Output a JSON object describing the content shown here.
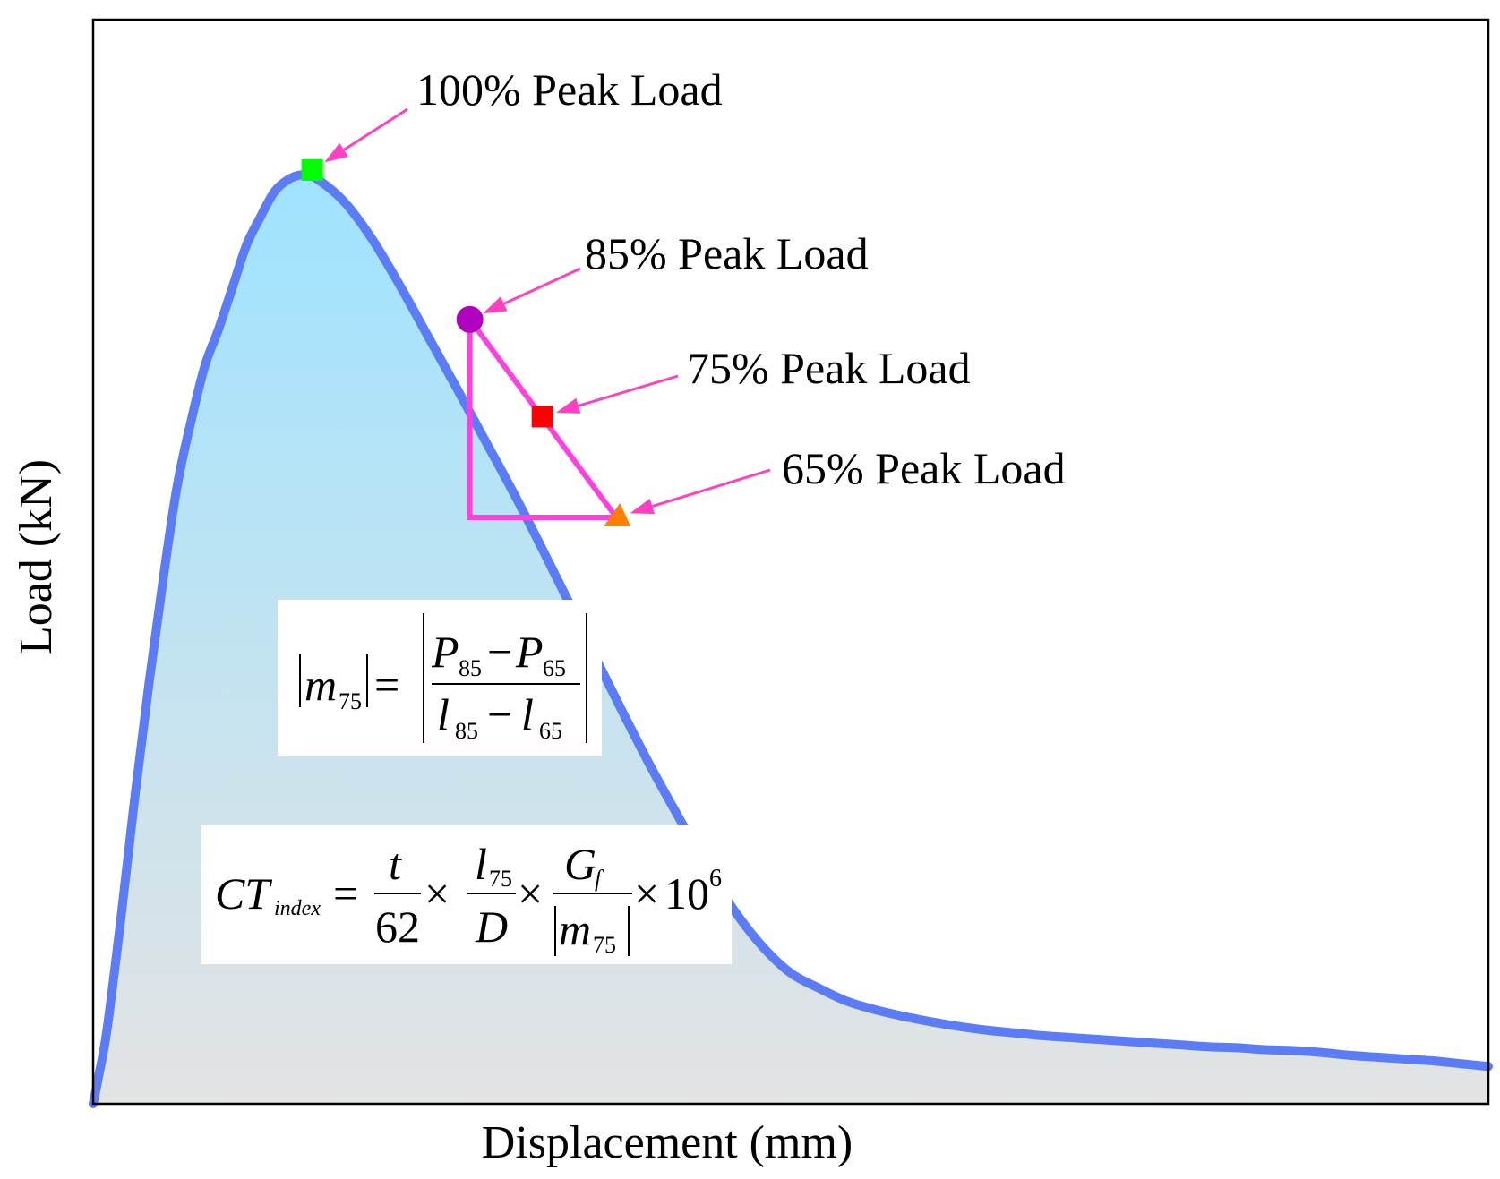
{
  "chart_data": {
    "type": "area",
    "xlabel": "Displacement (mm)",
    "ylabel": "Load (kN)",
    "xlim": [
      0,
      100
    ],
    "ylim": [
      0,
      100
    ],
    "series": [
      {
        "x": [
          0,
          0.4,
          1,
          2,
          3,
          4,
          5,
          6,
          7,
          8,
          9,
          10,
          11,
          12,
          13,
          14,
          15,
          16,
          18,
          20,
          22,
          24,
          26,
          28,
          30,
          32,
          34,
          36,
          38,
          40,
          42,
          44,
          46,
          48,
          50,
          52,
          54,
          56,
          58,
          60,
          62,
          64,
          66,
          68,
          70,
          72,
          74,
          76,
          78,
          80,
          82,
          84,
          86,
          88,
          90,
          92,
          94,
          96,
          98,
          100
        ],
        "y": [
          0,
          3,
          8,
          20,
          33,
          45,
          56,
          66,
          73,
          79,
          83,
          87.5,
          92,
          95,
          97.7,
          99,
          99.5,
          99.1,
          96.6,
          92.6,
          87.6,
          82.2,
          76.8,
          71.3,
          65.8,
          60.0,
          54.0,
          47.8,
          41.8,
          36.0,
          30.6,
          25.3,
          20.6,
          16.8,
          14.0,
          12.4,
          11.0,
          10.1,
          9.4,
          8.8,
          8.3,
          7.9,
          7.6,
          7.3,
          7.1,
          6.9,
          6.7,
          6.5,
          6.3,
          6.1,
          6.0,
          5.8,
          5.7,
          5.5,
          5.2,
          5.0,
          4.8,
          4.6,
          4.3,
          4.0
        ]
      }
    ],
    "annotations": [
      {
        "label": "100% Peak Load",
        "x": 15.7,
        "y": 100,
        "marker": "square",
        "color": "#00ff00"
      },
      {
        "label": "85% Peak Load",
        "x": 27.0,
        "y": 84.0,
        "marker": "circle",
        "color": "#b000c0"
      },
      {
        "label": "75% Peak Load",
        "x": 32.2,
        "y": 73.6,
        "marker": "square",
        "color": "#ff0000"
      },
      {
        "label": "65% Peak Load",
        "x": 37.5,
        "y": 62.8,
        "marker": "triangle",
        "color": "#ff8000"
      }
    ],
    "slope_triangle": {
      "x_from": 27.0,
      "x_to": 37.5,
      "y_from": 84.0,
      "y_to": 62.8,
      "color": "#ff40e0"
    },
    "grid": false,
    "line_color": "#5b7cf5",
    "fill_top_color": "#9fe3ff",
    "fill_bottom_color": "#e3e3e3",
    "arrow_color": "#ff40c0"
  },
  "formulas": {
    "m75": {
      "lhs_var": "m",
      "lhs_sub": "75",
      "eq": "=",
      "num_a": "P",
      "num_a_sub": "85",
      "minus": "−",
      "num_b": "P",
      "num_b_sub": "65",
      "den_a": "l",
      "den_a_sub": "85",
      "den_b": "l",
      "den_b_sub": "65"
    },
    "ct_index": {
      "lhs": "CT",
      "lhs_sub": "index",
      "eq": "=",
      "f1_num": "t",
      "f1_den": "62",
      "times": "×",
      "f2_num": "l",
      "f2_num_sub": "75",
      "f2_den": "D",
      "f3_num": "G",
      "f3_num_sub": "f",
      "f3_den": "m",
      "f3_den_sub": "75",
      "factor": "10",
      "factor_exp": "6"
    }
  }
}
